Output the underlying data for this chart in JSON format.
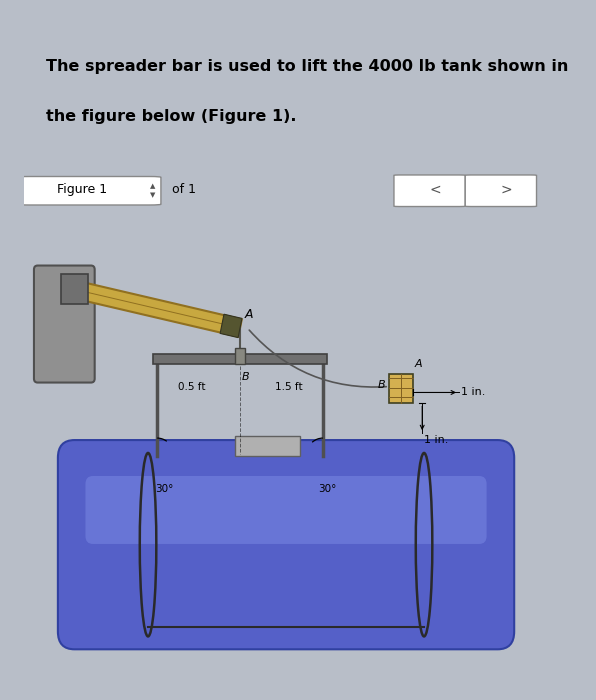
{
  "title_text_line1": "The spreader bar is used to lift the 4000 lb tank shown in",
  "title_text_line2": "the figure below (Figure 1).",
  "figure_label": "Figure 1",
  "of_label": "of 1",
  "bg_color": "#b8bec8",
  "fig_area_bg": "#dde2ea",
  "title_box_bg": "#f5f5f0",
  "toolbar_bg": "#dde2ea",
  "scene_bg": "#e8ecf2",
  "tank_main_color": "#5560c8",
  "tank_mid_color": "#6878d8",
  "tank_highlight": "#8090e8",
  "tank_edge": "#3040a0",
  "crane_arm_color": "#c8a840",
  "crane_arm_edge": "#907020",
  "crane_body_color": "#909090",
  "crane_body_edge": "#505050",
  "frame_color": "#505050",
  "cs_box_color": "#d4b050",
  "cs_box_edge": "#404020",
  "label_A": "A",
  "label_B": "B",
  "dim_1in_top": "1 in.",
  "dim_1in_bot": "1 in.",
  "angle_left": "30°",
  "angle_right": "30°",
  "dist_left": "0.5 ft",
  "dist_right": "1.5 ft"
}
